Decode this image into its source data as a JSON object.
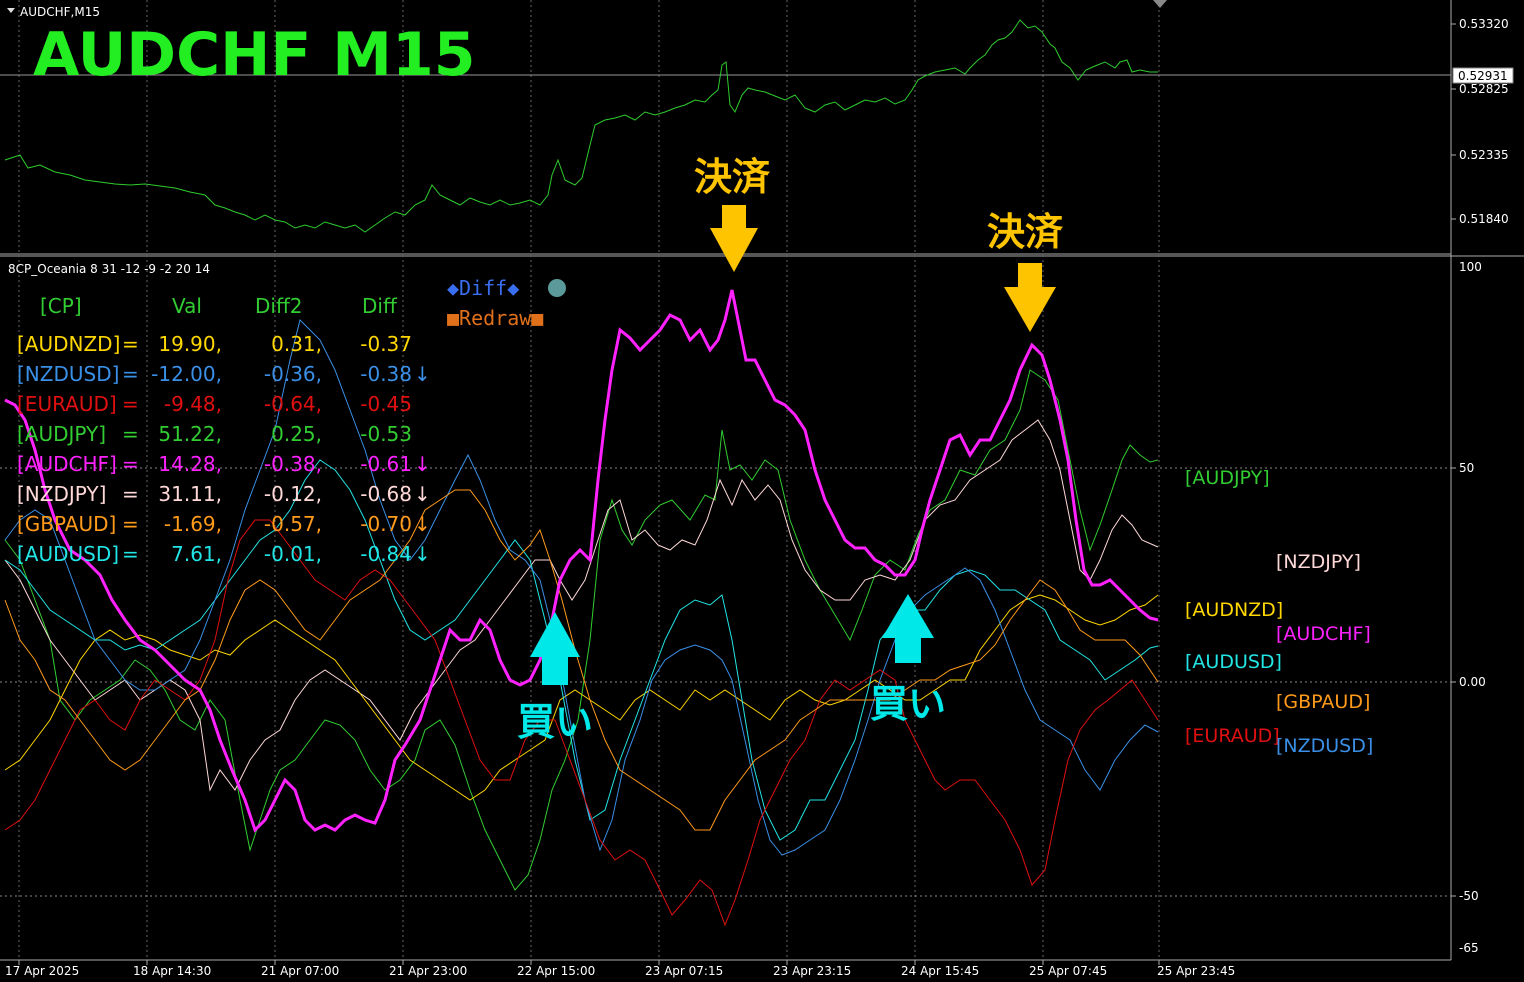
{
  "window": {
    "symbol_label": "AUDCHF,M15",
    "big_title": "AUDCHF  M15",
    "current_price": "0.52931"
  },
  "price_axis": [
    "0.53320",
    "0.52825",
    "0.52335",
    "0.51840"
  ],
  "indicator": {
    "title": "8CP_Oceania 8 31 -12 -9 -2 20 14",
    "header": {
      "cp": "[CP]",
      "val": "Val",
      "diff2": "Diff2",
      "diff": "Diff"
    },
    "buttons": {
      "diff": "◆Diff◆",
      "redraw": "■Redraw■"
    },
    "rows": [
      {
        "pair": "[AUDNZD]",
        "eq": "=",
        "val": "19.90,",
        "diff2": "0.31,",
        "diff": "-0.37",
        "arrow": "",
        "color": "#ffd700"
      },
      {
        "pair": "[NZDUSD]",
        "eq": "=",
        "val": "-12.00,",
        "diff2": "-0.36,",
        "diff": "-0.38",
        "arrow": "↓",
        "color": "#3a8fe6"
      },
      {
        "pair": "[EURAUD]",
        "eq": "=",
        "val": "-9.48,",
        "diff2": "-0.64,",
        "diff": "-0.45",
        "arrow": "",
        "color": "#e01010"
      },
      {
        "pair": "[AUDJPY]",
        "eq": "=",
        "val": "51.22,",
        "diff2": "0.25,",
        "diff": "-0.53",
        "arrow": "",
        "color": "#32cd32"
      },
      {
        "pair": "[AUDCHF]",
        "eq": "=",
        "val": "14.28,",
        "diff2": "-0.38,",
        "diff": "-0.61",
        "arrow": "↓",
        "color": "#ff22ff"
      },
      {
        "pair": "[NZDJPY]",
        "eq": "=",
        "val": "31.11,",
        "diff2": "-0.12,",
        "diff": "-0.68",
        "arrow": "↓",
        "color": "#ffd8d8"
      },
      {
        "pair": "[GBPAUD]",
        "eq": "=",
        "val": "-1.69,",
        "diff2": "-0.57,",
        "diff": "-0.70",
        "arrow": "↓",
        "color": "#ff9a1a"
      },
      {
        "pair": "[AUDUSD]",
        "eq": "=",
        "val": "7.61,",
        "diff2": "-0.01,",
        "diff": "-0.84",
        "arrow": "↓",
        "color": "#22e5e5"
      }
    ],
    "axis": [
      "100",
      "50",
      "0.00",
      "-50",
      "-65"
    ],
    "right_labels": [
      {
        "text": "[AUDJPY]",
        "color": "#32cd32"
      },
      {
        "text": "[NZDJPY]",
        "color": "#ffd8d8"
      },
      {
        "text": "[AUDNZD]",
        "color": "#ffd700"
      },
      {
        "text": "[AUDCHF]",
        "color": "#ff22ff"
      },
      {
        "text": "[AUDUSD]",
        "color": "#22e5e5"
      },
      {
        "text": "[GBPAUD]",
        "color": "#ff9a1a"
      },
      {
        "text": "[EURAUD]",
        "color": "#e01010"
      },
      {
        "text": "[NZDUSD]",
        "color": "#3a8fe6"
      }
    ]
  },
  "annotations": {
    "settle": "決済",
    "buy": "買い"
  },
  "time_axis": [
    "17 Apr 2025",
    "18 Apr 14:30",
    "21 Apr 07:00",
    "21 Apr 23:00",
    "22 Apr 15:00",
    "23 Apr 07:15",
    "23 Apr 23:15",
    "24 Apr 15:45",
    "25 Apr 07:45",
    "25 Apr 23:45"
  ],
  "colors": {
    "price_line": "#2ecc2e",
    "title_green": "#22ee22",
    "settle_yellow": "#ffc400",
    "buy_cyan": "#00e8e8",
    "audchf": "#ff22ff"
  }
}
